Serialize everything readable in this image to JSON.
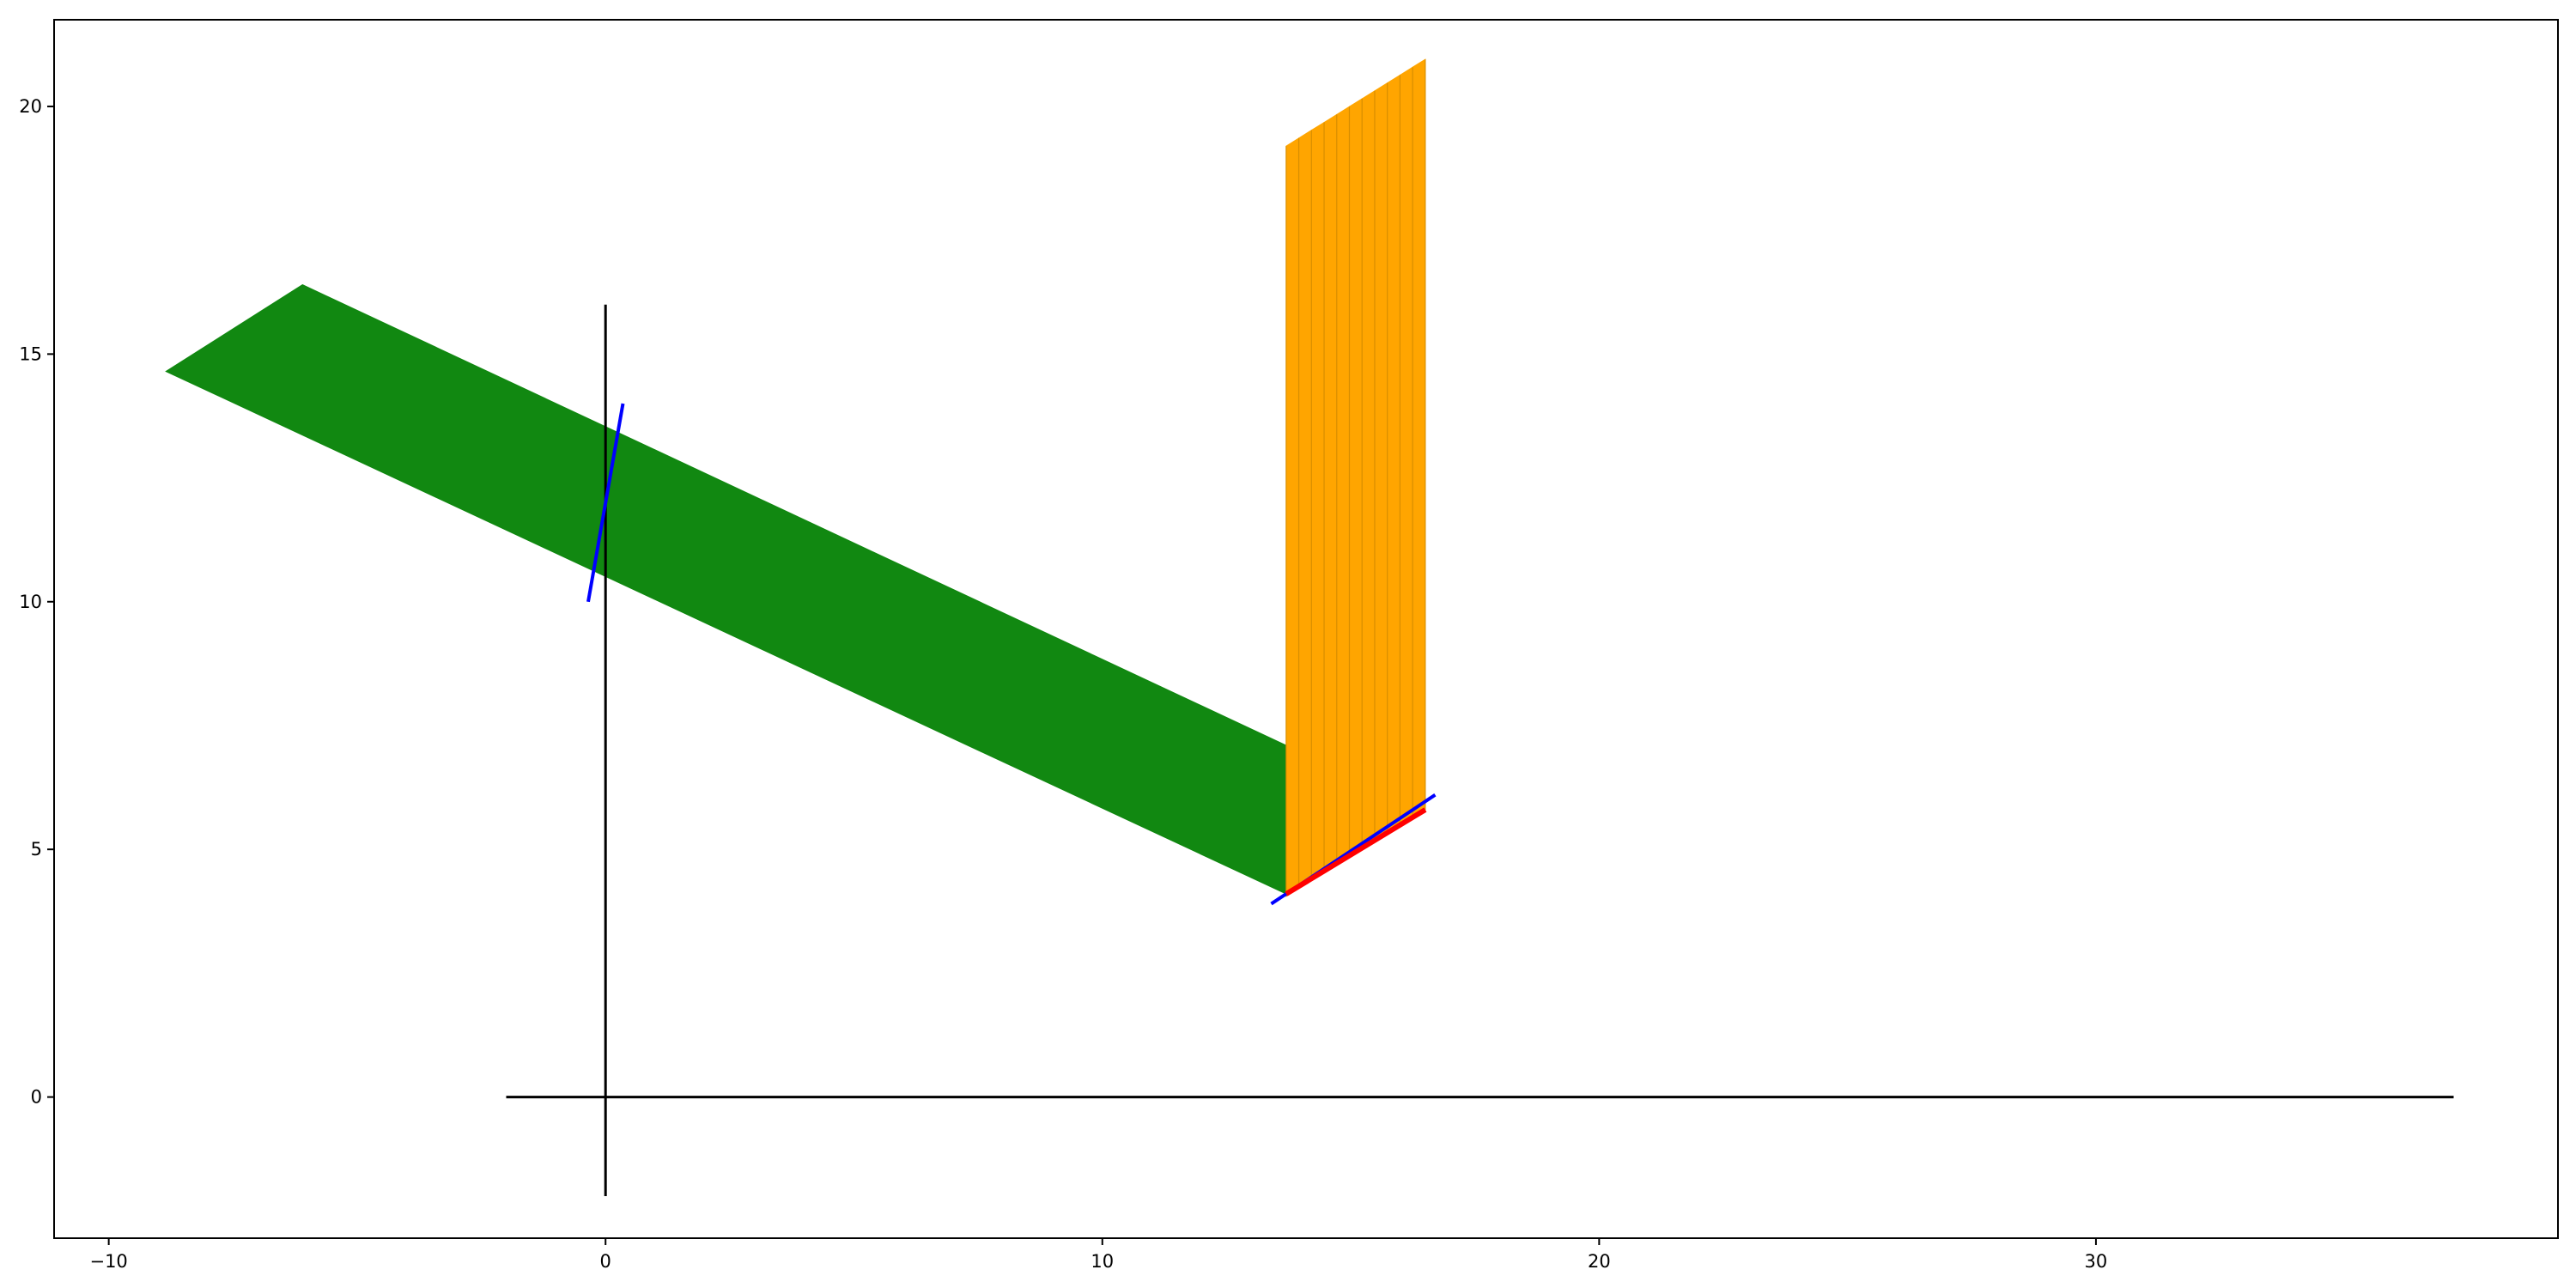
{
  "chart_data": {
    "type": "line",
    "title": "",
    "xlabel": "",
    "ylabel": "",
    "xlim": [
      -11.1,
      39.3
    ],
    "ylim": [
      -2.85,
      21.75
    ],
    "grid": false,
    "legend": "none",
    "x_ticks": [
      {
        "value": -10,
        "label": "−10"
      },
      {
        "value": 0,
        "label": "0"
      },
      {
        "value": 10,
        "label": "10"
      },
      {
        "value": 20,
        "label": "20"
      },
      {
        "value": 30,
        "label": "30"
      }
    ],
    "y_ticks": [
      {
        "value": 0,
        "label": "0"
      },
      {
        "value": 5,
        "label": "5"
      },
      {
        "value": 10,
        "label": "10"
      },
      {
        "value": 15,
        "label": "15"
      },
      {
        "value": 20,
        "label": "20"
      }
    ],
    "colors": {
      "axes_lines": "#000000",
      "green_band": "#118811",
      "orange_fan": "#ffa500",
      "blue_lines": "#0000ff",
      "red_segment": "#ff0000"
    },
    "axis_lines": [
      {
        "name": "horizontal-axis-line",
        "points": [
          [
            -2,
            0
          ],
          [
            37.2,
            0
          ]
        ]
      },
      {
        "name": "vertical-axis-line",
        "points": [
          [
            0,
            -2
          ],
          [
            0,
            16
          ]
        ]
      }
    ],
    "green_band": {
      "points": [
        [
          -8.85,
          14.65
        ],
        [
          -6.1,
          16.4
        ],
        [
          13.7,
          7.1
        ],
        [
          13.7,
          4.1
        ],
        [
          -8.85,
          14.65
        ]
      ]
    },
    "blue_lines": [
      {
        "name": "blue-line-left",
        "points": [
          [
            -0.35,
            10.0
          ],
          [
            0.35,
            14.0
          ]
        ]
      },
      {
        "name": "blue-line-right",
        "points": [
          [
            13.4,
            3.9
          ],
          [
            16.7,
            6.1
          ]
        ]
      }
    ],
    "red_segment": {
      "points": [
        [
          13.7,
          4.1
        ],
        [
          16.5,
          5.8
        ]
      ]
    },
    "orange_fan": {
      "count": 12,
      "x_range": [
        13.7,
        16.5
      ],
      "bottom_range": [
        4.05,
        5.8
      ],
      "top_range": [
        19.2,
        20.95
      ]
    }
  }
}
